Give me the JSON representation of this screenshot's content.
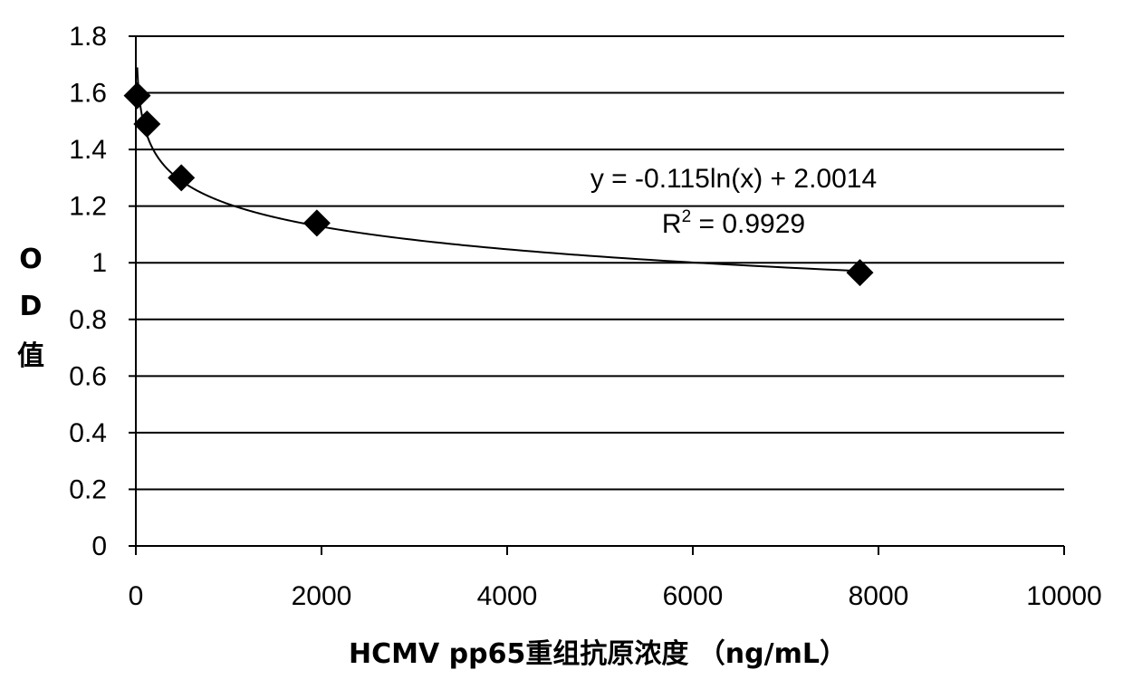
{
  "chart_data": {
    "type": "scatter",
    "xlabel": "HCMV pp65重组抗原浓度 （ng/mL）",
    "ylabel_lines": [
      "O",
      "D",
      "值"
    ],
    "xlim": [
      0,
      10000
    ],
    "ylim": [
      0,
      1.8
    ],
    "x_ticks": [
      "0",
      "2000",
      "4000",
      "6000",
      "8000",
      "10000"
    ],
    "y_ticks": [
      "0",
      "0.2",
      "0.4",
      "0.6",
      "0.8",
      "1",
      "1.2",
      "1.4",
      "1.6",
      "1.8"
    ],
    "grid": "horizontal",
    "series": [
      {
        "marker": "diamond",
        "color": "#000000",
        "x": [
          15,
          120,
          490,
          1950,
          7800
        ],
        "y": [
          1.59,
          1.49,
          1.3,
          1.14,
          0.965
        ]
      }
    ],
    "trendline": {
      "type": "logarithmic",
      "a": -0.115,
      "b": 2.0014,
      "equation": "y = -0.115ln(x) + 2.0014",
      "r2_prefix": "R",
      "r2_exp": "2",
      "r2_value": " = 0.9929"
    }
  }
}
